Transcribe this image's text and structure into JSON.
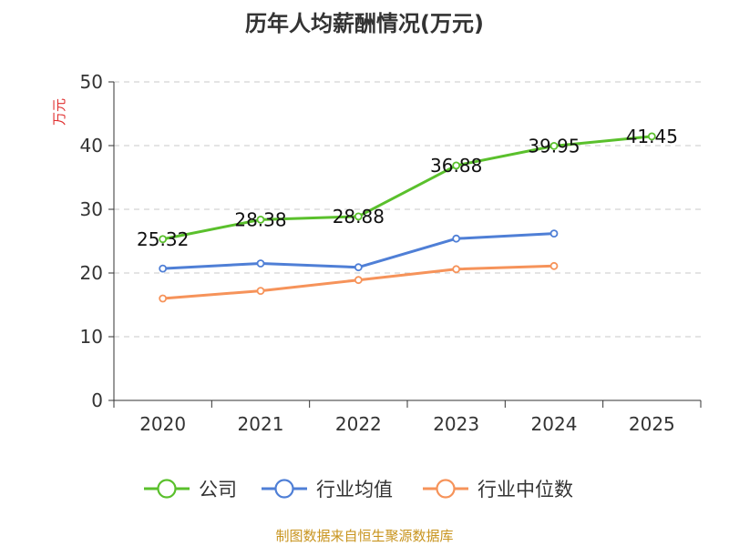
{
  "chart_data": {
    "type": "line",
    "title": "历年人均薪酬情况(万元)",
    "ylabel": "万元",
    "xlabel": "",
    "ylim": [
      0,
      50
    ],
    "yticks": [
      0,
      10,
      20,
      30,
      40,
      50
    ],
    "categories": [
      "2020",
      "2021",
      "2022",
      "2023",
      "2024",
      "2025"
    ],
    "grid": true,
    "legend_position": "bottom",
    "series": [
      {
        "name": "公司",
        "color": "#5ac02c",
        "values": [
          25.32,
          28.38,
          28.88,
          36.88,
          39.95,
          41.45
        ],
        "data_labels": [
          "25.32",
          "28.38",
          "28.88",
          "36.88",
          "39.95",
          "41.45"
        ]
      },
      {
        "name": "行业均值",
        "color": "#4f7fd6",
        "values": [
          20.7,
          21.5,
          20.9,
          25.4,
          26.2,
          null
        ]
      },
      {
        "name": "行业中位数",
        "color": "#f6935a",
        "values": [
          16.0,
          17.2,
          18.9,
          20.6,
          21.1,
          null
        ]
      }
    ]
  },
  "footer": {
    "source": "制图数据来自恒生聚源数据库"
  }
}
